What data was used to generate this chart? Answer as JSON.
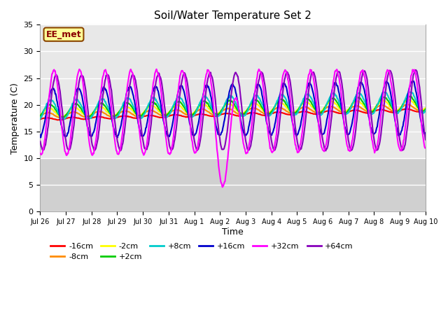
{
  "title": "Soil/Water Temperature Set 2",
  "xlabel": "Time",
  "ylabel": "Temperature (C)",
  "ylim": [
    0,
    35
  ],
  "yticks": [
    0,
    5,
    10,
    15,
    20,
    25,
    30,
    35
  ],
  "background_color": "#ffffff",
  "plot_bg_top": "#e8e8e8",
  "plot_bg_bottom": "#c8c8c8",
  "series_colors": {
    "-16cm": "#ff0000",
    "-8cm": "#ff8c00",
    "-2cm": "#ffff00",
    "+2cm": "#00cc00",
    "+8cm": "#00cccc",
    "+16cm": "#0000cc",
    "+32cm": "#ff00ff",
    "+64cm": "#8800bb"
  },
  "annotation_label": "EE_met",
  "series_order": [
    "-16cm",
    "-8cm",
    "-2cm",
    "+2cm",
    "+8cm",
    "+16cm",
    "+32cm",
    "+64cm"
  ],
  "legend_row1": [
    "-16cm",
    "-8cm",
    "-2cm",
    "+2cm",
    "+8cm",
    "+16cm"
  ],
  "legend_row2": [
    "+32cm",
    "+64cm"
  ]
}
